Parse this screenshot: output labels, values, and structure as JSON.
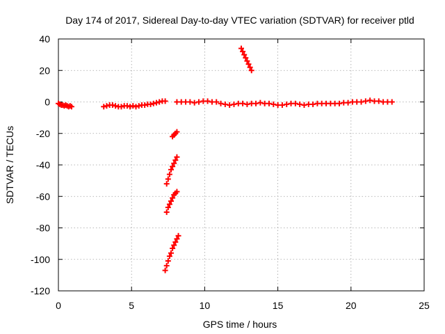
{
  "chart_data": {
    "type": "scatter",
    "title": "Day 174 of 2017, Sidereal Day-to-day VTEC variation (SDTVAR) for receiver ptld",
    "xlabel": "GPS time / hours",
    "ylabel": "SDTVAR / TECUs",
    "xlim": [
      0,
      25
    ],
    "ylim": [
      -120,
      40
    ],
    "xticks": [
      "0",
      "5",
      "10",
      "15",
      "20",
      "25"
    ],
    "yticks": [
      "-120",
      "-100",
      "-80",
      "-60",
      "-40",
      "-20",
      "0",
      "20",
      "40"
    ],
    "grid": true,
    "marker": "plus",
    "color": "#ff0000",
    "series": [
      {
        "x": [
          0.0,
          0.1,
          0.2,
          0.3,
          0.4,
          0.5,
          0.6,
          0.7,
          0.8,
          0.9
        ],
        "y": [
          -1,
          -1.5,
          -2,
          -2,
          -2.5,
          -2,
          -2.5,
          -3,
          -2.5,
          -3
        ]
      },
      {
        "x": [
          3.1,
          3.3,
          3.5,
          3.7,
          3.9,
          4.1,
          4.3,
          4.5,
          4.7,
          4.9,
          5.1,
          5.3,
          5.5,
          5.7,
          5.9,
          6.1,
          6.3,
          6.5,
          6.7,
          6.9,
          7.1,
          7.3
        ],
        "y": [
          -3,
          -2.5,
          -2,
          -2,
          -2.5,
          -3,
          -3,
          -2.5,
          -2.5,
          -3,
          -2.5,
          -3,
          -2.5,
          -2,
          -2,
          -1.5,
          -1.5,
          -1,
          -0.5,
          0,
          0.5,
          0.5
        ]
      },
      {
        "x": [
          8.1,
          8.4,
          8.7,
          9.0,
          9.3,
          9.6,
          9.9,
          10.2,
          10.5,
          10.8,
          11.1,
          11.4,
          11.7,
          12.0,
          12.3,
          12.6,
          12.9,
          13.2,
          13.5,
          13.8,
          14.1,
          14.4,
          14.7,
          15.0,
          15.3,
          15.6,
          15.9,
          16.2,
          16.5,
          16.8,
          17.1,
          17.4,
          17.7,
          18.0,
          18.3,
          18.6,
          18.9,
          19.2,
          19.5,
          19.8,
          20.1,
          20.4,
          20.7,
          21.0,
          21.3,
          21.6,
          21.9,
          22.2,
          22.5,
          22.8
        ],
        "y": [
          0,
          0,
          0,
          0,
          -0.5,
          0,
          0.5,
          0.5,
          0,
          0,
          -1,
          -1.5,
          -2,
          -1.5,
          -1,
          -1,
          -1.5,
          -1,
          -1,
          -0.5,
          -1,
          -1,
          -1.5,
          -2,
          -2,
          -1.5,
          -1,
          -1,
          -1.5,
          -2,
          -1.5,
          -1.5,
          -1,
          -1,
          -1,
          -1,
          -1,
          -1,
          -0.5,
          -0.5,
          0,
          0,
          0,
          0.5,
          1,
          0.5,
          0.5,
          0,
          0,
          0
        ]
      },
      {
        "x": [
          12.5,
          12.6,
          12.7,
          12.8,
          12.9,
          13.0,
          13.1,
          13.2
        ],
        "y": [
          34,
          32,
          30,
          28,
          26,
          24,
          22,
          20
        ]
      },
      {
        "x": [
          7.8,
          7.9,
          8.0,
          8.1
        ],
        "y": [
          -22,
          -21,
          -20,
          -19
        ]
      },
      {
        "x": [
          7.4,
          7.5,
          7.6,
          7.7,
          7.8,
          7.9,
          8.0,
          8.1
        ],
        "y": [
          -52,
          -49,
          -46,
          -43,
          -41,
          -39,
          -37,
          -35
        ]
      },
      {
        "x": [
          7.4,
          7.5,
          7.6,
          7.7,
          7.8,
          7.9,
          8.0,
          8.1
        ],
        "y": [
          -70,
          -67,
          -65,
          -63,
          -61,
          -59,
          -58,
          -57
        ]
      },
      {
        "x": [
          7.3,
          7.4,
          7.5,
          7.6,
          7.7,
          7.8,
          7.9,
          8.0,
          8.1,
          8.2
        ],
        "y": [
          -107,
          -104,
          -101,
          -98,
          -96,
          -93,
          -91,
          -89,
          -87,
          -85
        ]
      }
    ]
  }
}
